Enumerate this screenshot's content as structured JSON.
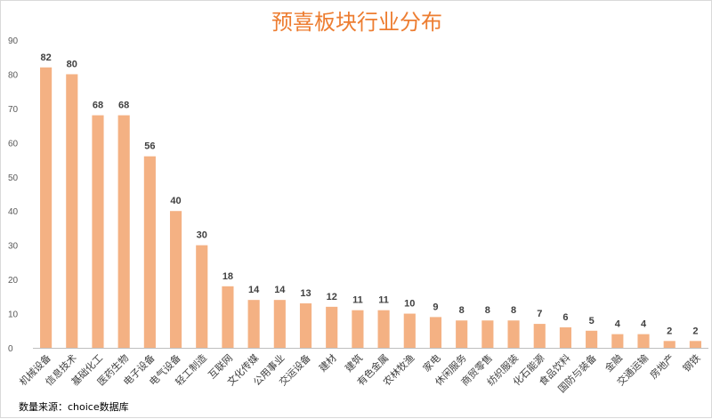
{
  "colors": {
    "bar": "#F4B183",
    "title": "#ED7D31",
    "axis": "#bfbfbf"
  },
  "source_note": "数量来源：choice数据库",
  "chart_data": {
    "type": "bar",
    "title": "预喜板块行业分布",
    "xlabel": "",
    "ylabel": "",
    "ylim": [
      0,
      90
    ],
    "yticks": [
      0,
      10,
      20,
      30,
      40,
      50,
      60,
      70,
      80,
      90
    ],
    "grid": false,
    "legend": "none",
    "categories": [
      "机械设备",
      "信息技术",
      "基础化工",
      "医药生物",
      "电子设备",
      "电气设备",
      "轻工制造",
      "互联网",
      "文化传媒",
      "公用事业",
      "交运设备",
      "建材",
      "建筑",
      "有色金属",
      "农林牧渔",
      "家电",
      "休闲服务",
      "商贸零售",
      "纺织服装",
      "化石能源",
      "食品饮料",
      "国防与装备",
      "金融",
      "交通运输",
      "房地产",
      "钢铁"
    ],
    "values": [
      82,
      80,
      68,
      68,
      56,
      40,
      30,
      18,
      14,
      14,
      13,
      12,
      11,
      11,
      10,
      9,
      8,
      8,
      8,
      7,
      6,
      5,
      4,
      4,
      2,
      2
    ]
  }
}
